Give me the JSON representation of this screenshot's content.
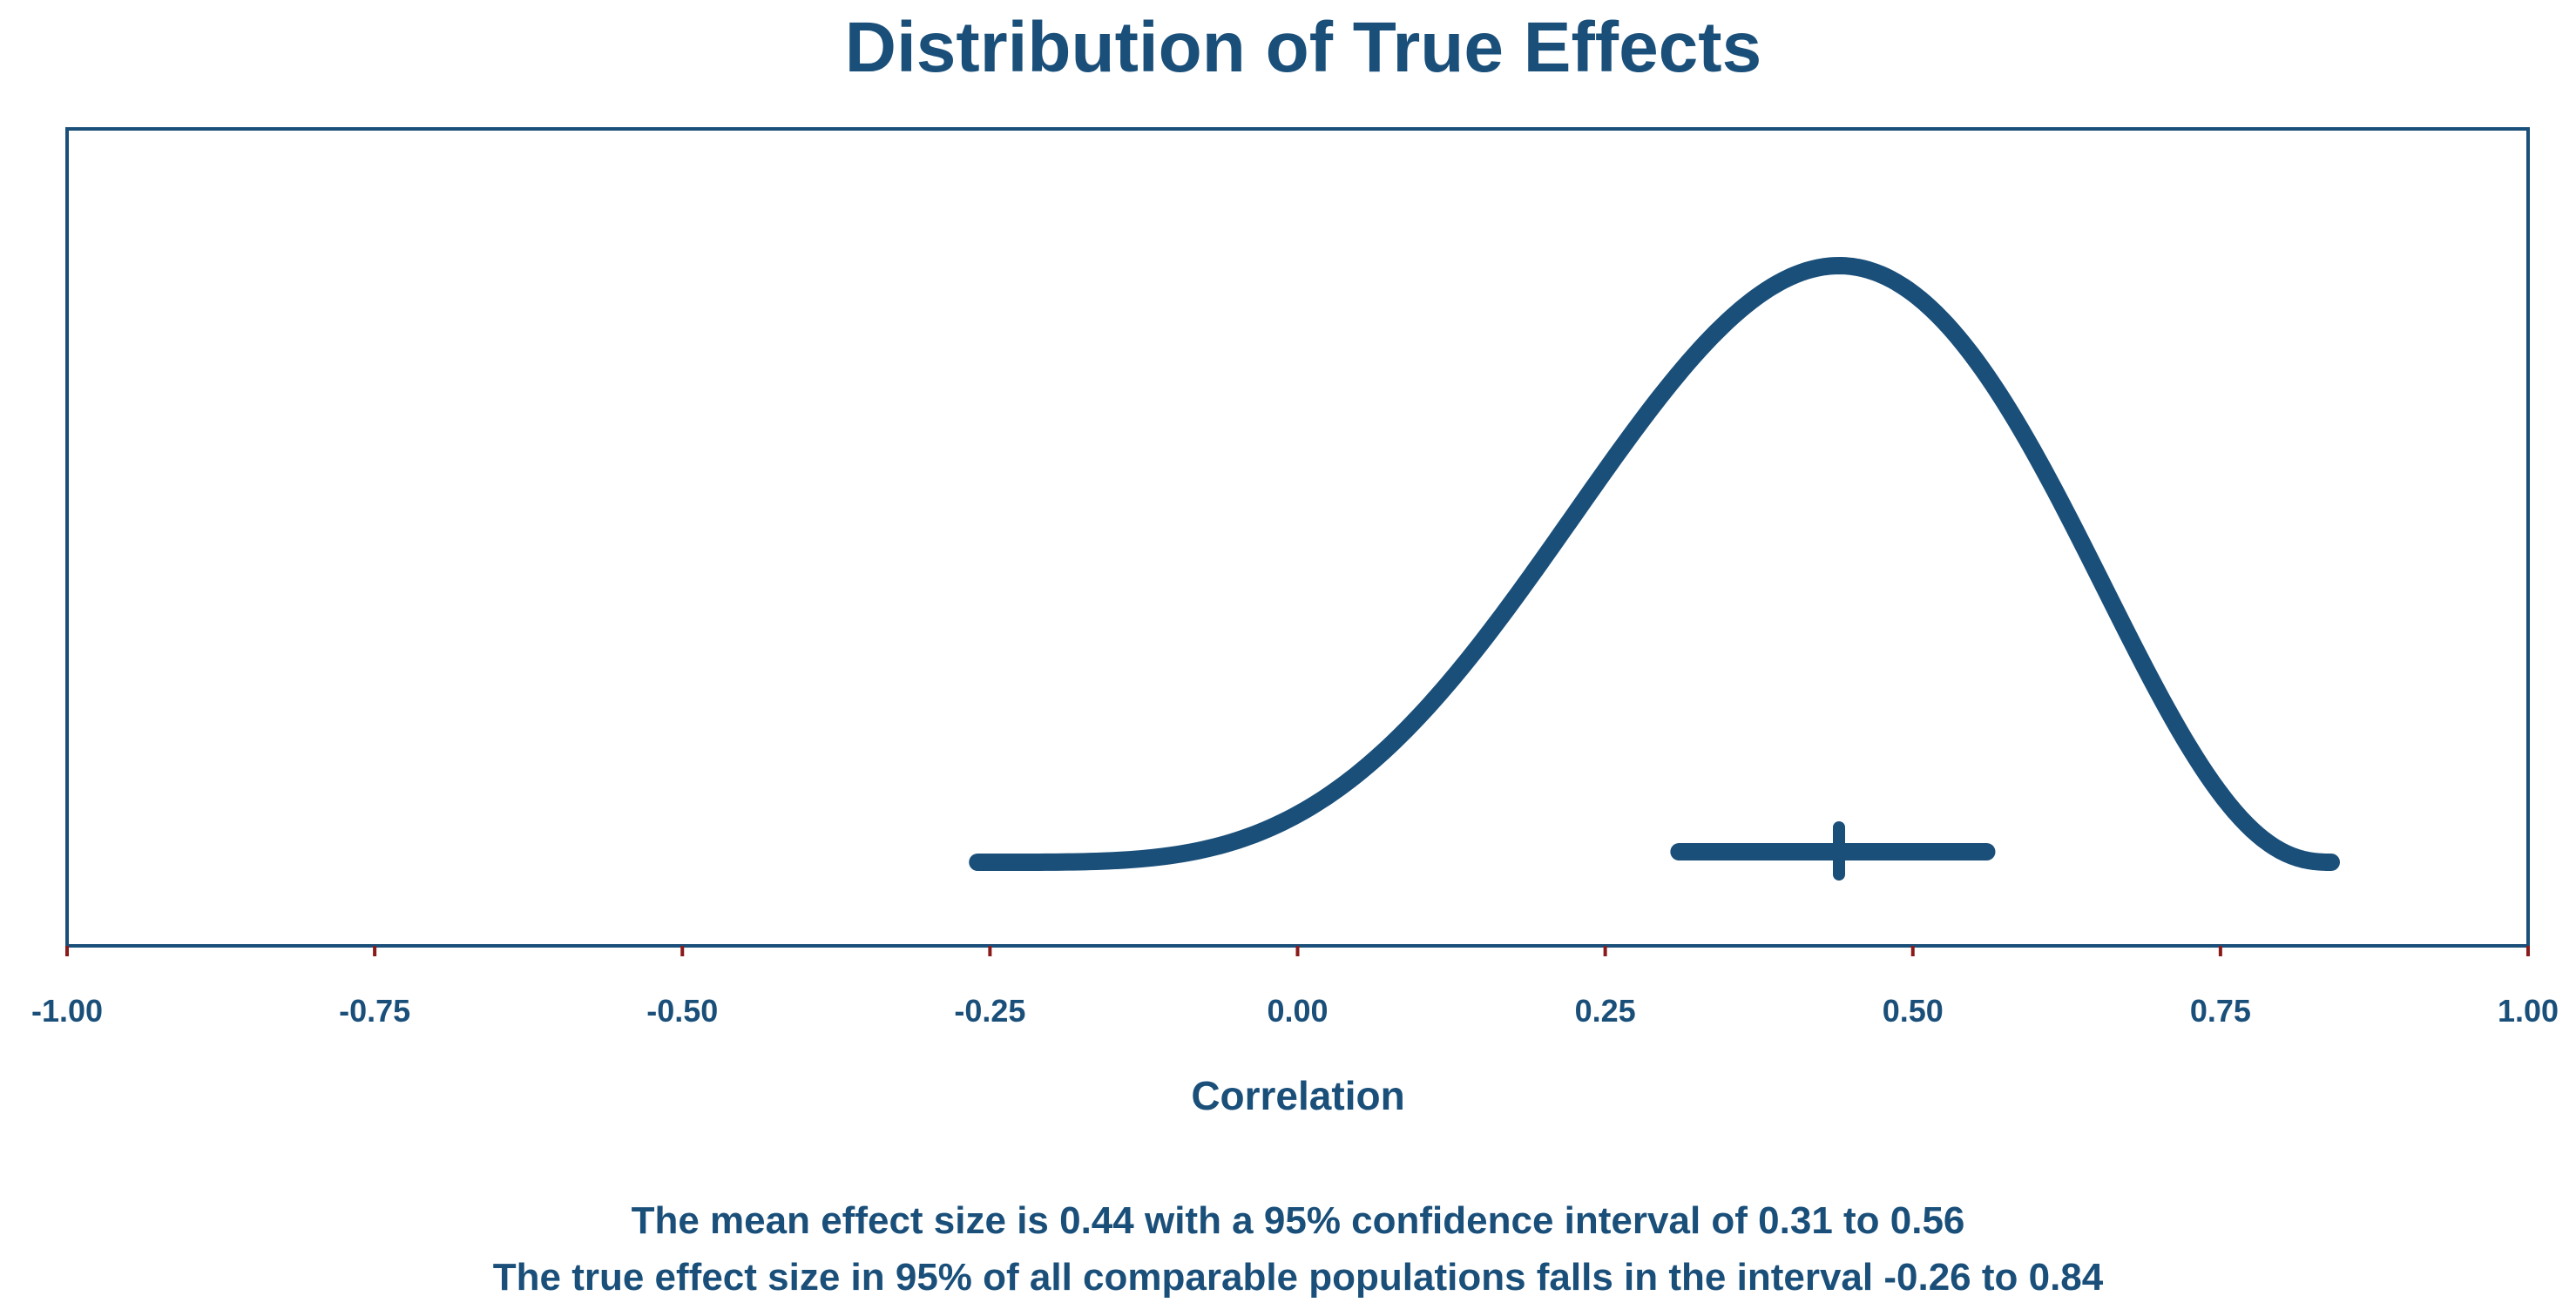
{
  "colors": {
    "primary": "#1a4f7a",
    "tick": "#8b1a1a",
    "background": "#ffffff"
  },
  "chart_data": {
    "type": "line",
    "title": "Distribution of True Effects",
    "xlabel": "Correlation",
    "ylabel": "",
    "xlim": [
      -1.0,
      1.0
    ],
    "x_ticks": [
      -1.0,
      -0.75,
      -0.5,
      -0.25,
      0.0,
      0.25,
      0.5,
      0.75,
      1.0
    ],
    "x_tick_labels": [
      "-1.00",
      "-0.75",
      "-0.50",
      "-0.25",
      "0.00",
      "0.25",
      "0.50",
      "0.75",
      "1.00"
    ],
    "mean": 0.44,
    "ci": [
      0.31,
      0.56
    ],
    "prediction_interval": [
      -0.26,
      0.84
    ],
    "grid": false,
    "legend": "none"
  },
  "footer": {
    "line1": "The mean effect size is 0.44 with a 95% confidence interval of 0.31 to 0.56",
    "line2": "The true effect size in 95% of all comparable populations falls in the interval -0.26 to 0.84"
  }
}
